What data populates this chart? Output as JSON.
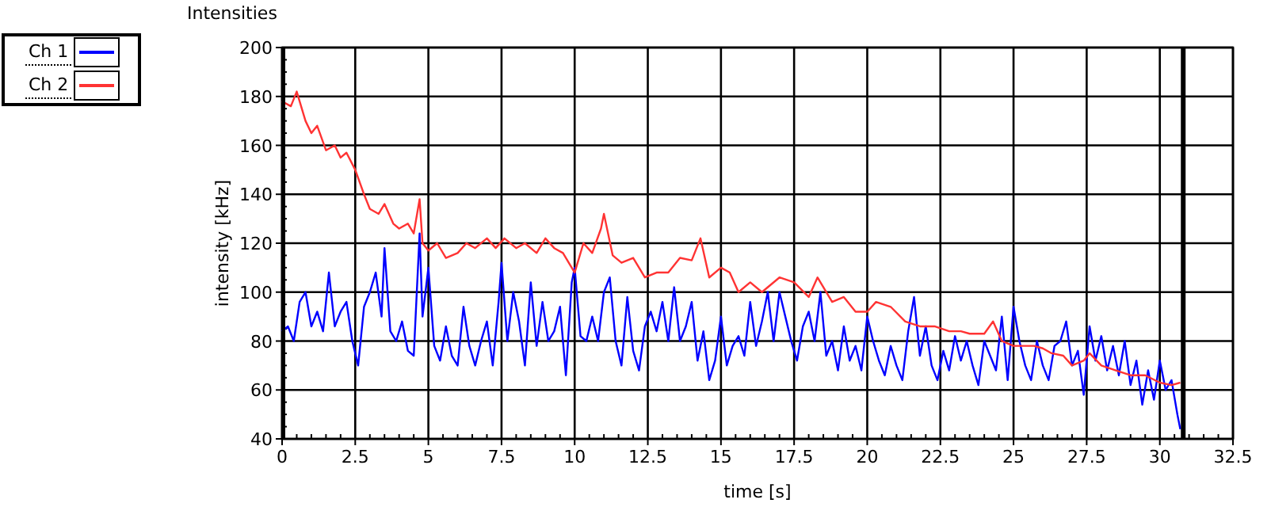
{
  "chart_data": {
    "type": "line",
    "title": "Intensities",
    "xlabel": "time [s]",
    "ylabel": "intensity [kHz]",
    "xlim": [
      0,
      32.5
    ],
    "xticks": [
      0,
      2.5,
      5,
      7.5,
      10,
      12.5,
      15,
      17.5,
      20,
      22.5,
      25,
      27.5,
      30,
      32.5
    ],
    "ylim": [
      40,
      200
    ],
    "yticks": [
      40,
      60,
      80,
      100,
      120,
      140,
      160,
      180,
      200
    ],
    "grid": true,
    "legend": "top left",
    "line_style": "solid",
    "ref_lines": [
      {
        "axis": "x",
        "value": 30.8,
        "color": "#000000"
      }
    ],
    "series": [
      {
        "name": "Ch 1",
        "color": "#0000ff",
        "x": [
          0,
          0.2,
          0.4,
          0.6,
          0.8,
          1.0,
          1.2,
          1.4,
          1.6,
          1.8,
          2.0,
          2.2,
          2.4,
          2.6,
          2.8,
          3.0,
          3.2,
          3.4,
          3.5,
          3.7,
          3.9,
          4.1,
          4.3,
          4.5,
          4.7,
          4.8,
          5.0,
          5.2,
          5.4,
          5.6,
          5.8,
          6.0,
          6.2,
          6.4,
          6.6,
          6.8,
          7.0,
          7.2,
          7.4,
          7.5,
          7.7,
          7.9,
          8.1,
          8.3,
          8.5,
          8.7,
          8.9,
          9.1,
          9.3,
          9.5,
          9.7,
          9.9,
          10.0,
          10.2,
          10.4,
          10.6,
          10.8,
          11.0,
          11.2,
          11.4,
          11.6,
          11.8,
          12.0,
          12.2,
          12.4,
          12.6,
          12.8,
          13.0,
          13.2,
          13.4,
          13.6,
          13.8,
          14.0,
          14.2,
          14.4,
          14.6,
          14.8,
          15.0,
          15.2,
          15.4,
          15.6,
          15.8,
          16.0,
          16.2,
          16.4,
          16.6,
          16.8,
          17.0,
          17.2,
          17.4,
          17.6,
          17.8,
          18.0,
          18.2,
          18.4,
          18.6,
          18.8,
          19.0,
          19.2,
          19.4,
          19.6,
          19.8,
          20.0,
          20.2,
          20.4,
          20.6,
          20.8,
          21.0,
          21.2,
          21.4,
          21.6,
          21.8,
          22.0,
          22.2,
          22.4,
          22.6,
          22.8,
          23.0,
          23.2,
          23.4,
          23.6,
          23.8,
          24.0,
          24.2,
          24.4,
          24.6,
          24.8,
          25.0,
          25.2,
          25.4,
          25.6,
          25.8,
          26.0,
          26.2,
          26.4,
          26.6,
          26.8,
          27.0,
          27.2,
          27.4,
          27.6,
          27.8,
          28.0,
          28.2,
          28.4,
          28.6,
          28.8,
          29.0,
          29.2,
          29.4,
          29.6,
          29.8,
          30.0,
          30.2,
          30.4,
          30.6,
          30.7
        ],
        "values": [
          84,
          86,
          80,
          96,
          100,
          86,
          92,
          84,
          108,
          86,
          92,
          96,
          80,
          70,
          94,
          100,
          108,
          90,
          118,
          84,
          80,
          88,
          76,
          74,
          124,
          90,
          110,
          78,
          72,
          86,
          74,
          70,
          94,
          78,
          70,
          80,
          88,
          70,
          96,
          112,
          80,
          100,
          88,
          70,
          104,
          78,
          96,
          80,
          84,
          94,
          66,
          104,
          110,
          82,
          80,
          90,
          80,
          100,
          106,
          80,
          70,
          98,
          76,
          68,
          86,
          92,
          84,
          96,
          80,
          102,
          80,
          86,
          96,
          72,
          84,
          64,
          72,
          90,
          70,
          78,
          82,
          74,
          96,
          78,
          88,
          100,
          80,
          100,
          90,
          80,
          72,
          86,
          92,
          80,
          100,
          74,
          80,
          68,
          86,
          72,
          78,
          68,
          90,
          80,
          72,
          66,
          78,
          70,
          64,
          84,
          98,
          74,
          86,
          70,
          64,
          76,
          68,
          82,
          72,
          80,
          70,
          62,
          80,
          74,
          68,
          90,
          64,
          94,
          80,
          70,
          64,
          80,
          70,
          64,
          78,
          80,
          88,
          70,
          76,
          58,
          86,
          72,
          82,
          68,
          78,
          66,
          80,
          62,
          72,
          54,
          68,
          56,
          72,
          60,
          64,
          50,
          44
        ]
      },
      {
        "name": "Ch 2",
        "color": "#ff3333",
        "x": [
          0,
          0.3,
          0.5,
          0.8,
          1.0,
          1.2,
          1.5,
          1.8,
          2.0,
          2.2,
          2.5,
          2.8,
          3.0,
          3.3,
          3.5,
          3.8,
          4.0,
          4.3,
          4.5,
          4.7,
          4.8,
          5.0,
          5.3,
          5.6,
          6.0,
          6.3,
          6.6,
          7.0,
          7.3,
          7.6,
          8.0,
          8.3,
          8.7,
          9.0,
          9.3,
          9.6,
          10.0,
          10.3,
          10.6,
          10.9,
          11.0,
          11.3,
          11.6,
          12.0,
          12.4,
          12.8,
          13.2,
          13.6,
          14.0,
          14.3,
          14.6,
          15.0,
          15.3,
          15.6,
          16.0,
          16.4,
          17.0,
          17.5,
          18.0,
          18.3,
          18.8,
          19.2,
          19.6,
          20.0,
          20.3,
          20.8,
          21.3,
          21.8,
          22.3,
          22.8,
          23.2,
          23.5,
          24.0,
          24.3,
          24.6,
          25.0,
          25.3,
          25.7,
          26.0,
          26.3,
          26.7,
          27.0,
          27.4,
          27.6,
          28.0,
          28.5,
          29.0,
          29.5,
          30.0,
          30.4,
          30.7
        ],
        "values": [
          178,
          176,
          182,
          170,
          165,
          168,
          158,
          160,
          155,
          157,
          150,
          140,
          134,
          132,
          136,
          128,
          126,
          128,
          124,
          138,
          120,
          117,
          120,
          114,
          116,
          120,
          118,
          122,
          118,
          122,
          118,
          120,
          116,
          122,
          118,
          116,
          108,
          120,
          116,
          126,
          132,
          115,
          112,
          114,
          106,
          108,
          108,
          114,
          113,
          122,
          106,
          110,
          108,
          100,
          104,
          100,
          106,
          104,
          98,
          106,
          96,
          98,
          92,
          92,
          96,
          94,
          88,
          86,
          86,
          84,
          84,
          83,
          83,
          88,
          80,
          78,
          78,
          78,
          77,
          75,
          74,
          70,
          72,
          75,
          70,
          68,
          66,
          66,
          63,
          62,
          63
        ]
      }
    ]
  }
}
